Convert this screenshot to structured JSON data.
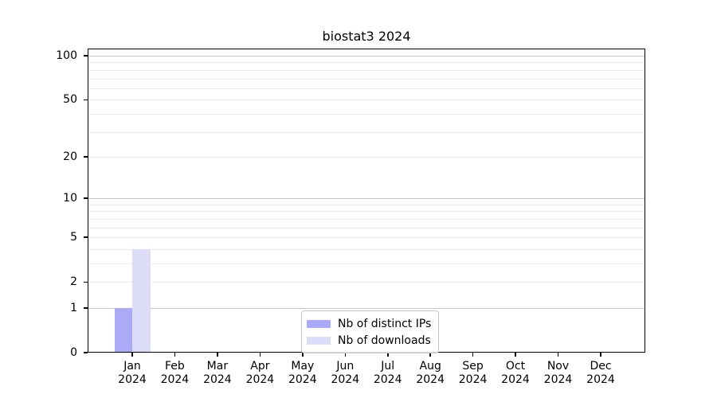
{
  "chart_data": {
    "type": "bar",
    "title": "biostat3 2024",
    "categories": [
      "Jan",
      "Feb",
      "Mar",
      "Apr",
      "May",
      "Jun",
      "Jul",
      "Aug",
      "Sep",
      "Oct",
      "Nov",
      "Dec"
    ],
    "x_tick_second_line": "2024",
    "series": [
      {
        "name": "Nb of distinct IPs",
        "color": "#aaaaf6",
        "values": [
          1,
          0,
          0,
          0,
          0,
          0,
          0,
          0,
          0,
          0,
          0,
          0
        ]
      },
      {
        "name": "Nb of downloads",
        "color": "#dcdcf8",
        "values": [
          4,
          0,
          0,
          0,
          0,
          0,
          0,
          0,
          0,
          0,
          0,
          0
        ]
      }
    ],
    "yscale": "log1p",
    "ylim": [
      0,
      100
    ],
    "yticks": [
      0,
      1,
      2,
      5,
      10,
      20,
      50,
      100
    ],
    "grid": "horizontal",
    "grid_major_values": [
      1,
      10,
      100
    ],
    "grid_minor_values": [
      2,
      3,
      4,
      5,
      6,
      7,
      8,
      9,
      20,
      30,
      40,
      50,
      60,
      70,
      80,
      90
    ],
    "legend_position": "lower center",
    "colors": {
      "bar_distinct_ips": "#aaaaf6",
      "bar_downloads": "#dcdcf8",
      "grid_major": "#c8c8c8",
      "grid_minor": "#ececec",
      "spine": "#000000",
      "text": "#000000",
      "legend_border": "#c7c7c7"
    }
  }
}
